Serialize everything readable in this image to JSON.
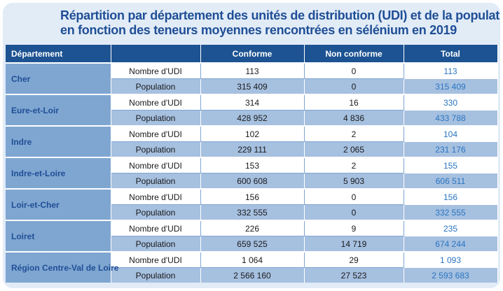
{
  "title": {
    "line1": "Répartition par département des unités de distribution (UDI) et de la population",
    "line2": "en fonction des teneurs moyennes rencontrées en sélénium en 2019"
  },
  "headers": {
    "departement": "Département",
    "blank": "",
    "conforme": "Conforme",
    "non_conforme": "Non conforme",
    "total": "Total"
  },
  "rows": [
    {
      "dept": "Cher",
      "udi": {
        "label": "Nombre d'UDI",
        "conforme": "113",
        "non_conforme": "0",
        "total": "113"
      },
      "pop": {
        "label": "Population",
        "conforme": "315 409",
        "non_conforme": "0",
        "total": "315 409"
      }
    },
    {
      "dept": "Eure-et-Loir",
      "udi": {
        "label": "Nombre d'UDI",
        "conforme": "314",
        "non_conforme": "16",
        "total": "330"
      },
      "pop": {
        "label": "Population",
        "conforme": "428 952",
        "non_conforme": "4 836",
        "total": "433 788"
      }
    },
    {
      "dept": "Indre",
      "udi": {
        "label": "Nombre d'UDI",
        "conforme": "102",
        "non_conforme": "2",
        "total": "104"
      },
      "pop": {
        "label": "Population",
        "conforme": "229 111",
        "non_conforme": "2 065",
        "total": "231 176"
      }
    },
    {
      "dept": "Indre-et-Loire",
      "udi": {
        "label": "Nombre d'UDI",
        "conforme": "153",
        "non_conforme": "2",
        "total": "155"
      },
      "pop": {
        "label": "Population",
        "conforme": "600 608",
        "non_conforme": "5 903",
        "total": "606 511"
      }
    },
    {
      "dept": "Loir-et-Cher",
      "udi": {
        "label": "Nombre d'UDI",
        "conforme": "156",
        "non_conforme": "0",
        "total": "156"
      },
      "pop": {
        "label": "Population",
        "conforme": "332 555",
        "non_conforme": "0",
        "total": "332 555"
      }
    },
    {
      "dept": "Loiret",
      "udi": {
        "label": "Nombre d'UDI",
        "conforme": "226",
        "non_conforme": "9",
        "total": "235"
      },
      "pop": {
        "label": "Population",
        "conforme": "659 525",
        "non_conforme": "14 719",
        "total": "674 244"
      }
    },
    {
      "dept": "Région Centre-Val de Loire",
      "udi": {
        "label": "Nombre d'UDI",
        "conforme": "1 064",
        "non_conforme": "29",
        "total": "1 093"
      },
      "pop": {
        "label": "Population",
        "conforme": "2 566 160",
        "non_conforme": "27 523",
        "total": "2 593 683"
      }
    }
  ],
  "colors": {
    "title": "#1f4e96",
    "header_bg": "#1d5392",
    "dept_bg": "#7fa6d1",
    "population_bg": "#a6c0e0",
    "total_text": "#2a75c0",
    "frame_bg": "#e2ecf7"
  }
}
